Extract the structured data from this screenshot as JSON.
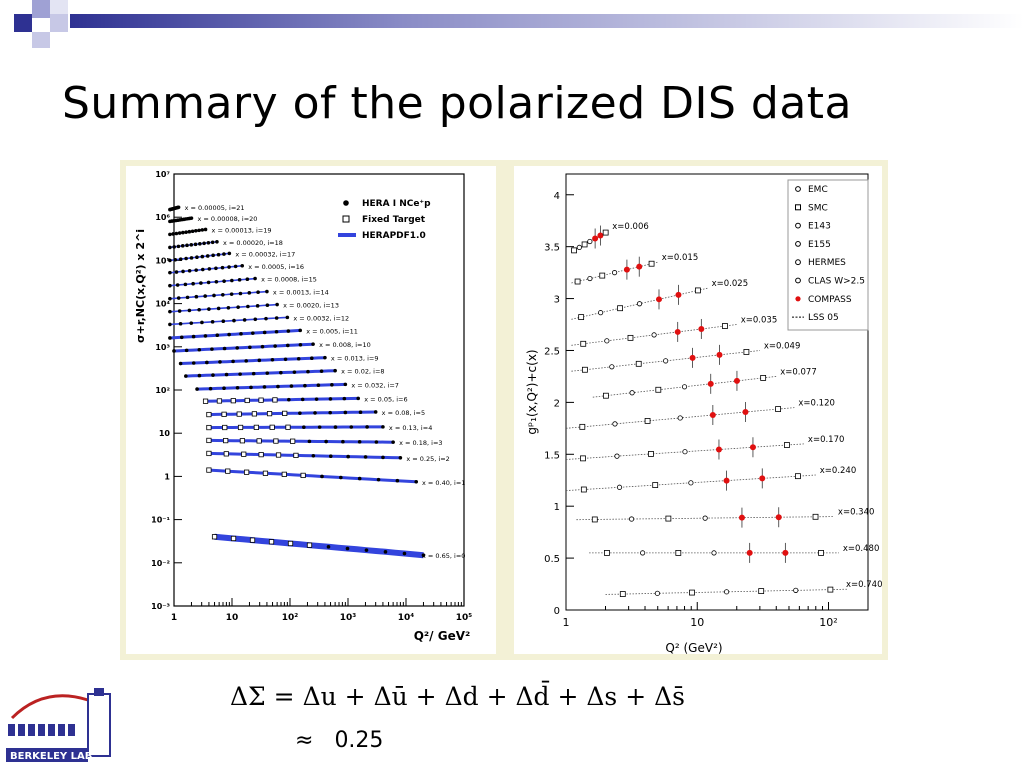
{
  "slide": {
    "title": "Summary of the polarized DIS data",
    "formula": "ΔΣ = Δu + Δū + Δd + Δd̄ + Δs + Δs̄",
    "approx_symbol": "≈",
    "approx_value": "0.25",
    "logo_text": "BERKELEY LAB",
    "accent": "#2e3192"
  },
  "chart_data": [
    {
      "type": "scatter",
      "ylabel": "σ+r,NC(x,Q²) x 2^i",
      "xlabel": "Q²/ GeV²",
      "xscale": "log",
      "yscale": "log",
      "xlim": [
        1,
        100000
      ],
      "ylim": [
        0.001,
        10000000
      ],
      "x_ticks": [
        "1",
        "10",
        "10²",
        "10³",
        "10⁴",
        "10⁵"
      ],
      "y_ticks": [
        "10⁻³",
        "10⁻²",
        "10⁻¹",
        "1",
        "10",
        "10²",
        "10³",
        "10⁴",
        "10⁵",
        "10⁶",
        "10⁷"
      ],
      "legend_position": "top-right",
      "legend": [
        {
          "label": "HERA I NCe⁺p",
          "marker": "filled-circle"
        },
        {
          "label": "Fixed Target",
          "marker": "open-square"
        },
        {
          "label": "HERAPDF1.0",
          "marker": "blue-band"
        }
      ],
      "series": [
        {
          "label": "x = 0.00005, i=21",
          "q2": [
            0.85,
            1.2
          ],
          "sigma_scaled": [
            1500000,
            1700000
          ]
        },
        {
          "label": "x = 0.00008, i=20",
          "q2": [
            0.85,
            2.0
          ],
          "sigma_scaled": [
            800000,
            950000
          ]
        },
        {
          "label": "x = 0.00013, i=19",
          "q2": [
            0.85,
            3.5
          ],
          "sigma_scaled": [
            400000,
            520000
          ]
        },
        {
          "label": "x = 0.00020, i=18",
          "q2": [
            0.85,
            5.5
          ],
          "sigma_scaled": [
            200000,
            270000
          ]
        },
        {
          "label": "x = 0.00032, i=17",
          "q2": [
            0.85,
            9
          ],
          "sigma_scaled": [
            100000,
            145000
          ]
        },
        {
          "label": "x = 0.0005, i=16",
          "q2": [
            0.85,
            15
          ],
          "sigma_scaled": [
            52000,
            75000
          ]
        },
        {
          "label": "x = 0.0008, i=15",
          "q2": [
            0.85,
            25
          ],
          "sigma_scaled": [
            26000,
            38000
          ]
        },
        {
          "label": "x = 0.0013, i=14",
          "q2": [
            0.85,
            40
          ],
          "sigma_scaled": [
            13000,
            19000
          ]
        },
        {
          "label": "x = 0.0020, i=13",
          "q2": [
            0.85,
            60
          ],
          "sigma_scaled": [
            6500,
            9500
          ]
        },
        {
          "label": "x = 0.0032, i=12",
          "q2": [
            0.85,
            90
          ],
          "sigma_scaled": [
            3300,
            4800
          ]
        },
        {
          "label": "x = 0.005, i=11",
          "q2": [
            0.85,
            150
          ],
          "sigma_scaled": [
            1600,
            2400
          ]
        },
        {
          "label": "x = 0.008, i=10",
          "q2": [
            1.0,
            250
          ],
          "sigma_scaled": [
            800,
            1150
          ]
        },
        {
          "label": "x = 0.013, i=9",
          "q2": [
            1.3,
            400
          ],
          "sigma_scaled": [
            410,
            560
          ]
        },
        {
          "label": "x = 0.02, i=8",
          "q2": [
            1.6,
            600
          ],
          "sigma_scaled": [
            210,
            280
          ]
        },
        {
          "label": "x = 0.032, i=7",
          "q2": [
            2.5,
            900
          ],
          "sigma_scaled": [
            105,
            135
          ]
        },
        {
          "label": "x = 0.05, i=6",
          "q2": [
            3.5,
            1500
          ],
          "sigma_scaled": [
            55,
            64
          ]
        },
        {
          "label": "x = 0.08, i=5",
          "q2": [
            4,
            3000
          ],
          "sigma_scaled": [
            27,
            31
          ]
        },
        {
          "label": "x = 0.13, i=4",
          "q2": [
            4,
            4000
          ],
          "sigma_scaled": [
            13.5,
            14
          ]
        },
        {
          "label": "x = 0.18, i=3",
          "q2": [
            4,
            6000
          ],
          "sigma_scaled": [
            6.8,
            6.2
          ]
        },
        {
          "label": "x = 0.25, i=2",
          "q2": [
            4,
            8000
          ],
          "sigma_scaled": [
            3.4,
            2.7
          ]
        },
        {
          "label": "x = 0.40, i=1",
          "q2": [
            4,
            15000
          ],
          "sigma_scaled": [
            1.4,
            0.75
          ]
        },
        {
          "label": "x = 0.65, i=0",
          "q2": [
            5,
            20000
          ],
          "sigma_scaled": [
            0.04,
            0.015
          ]
        }
      ]
    },
    {
      "type": "scatter",
      "ylabel": "gᵖ₁(x,Q²)+c(x)",
      "xlabel": "Q² (GeV²)",
      "xscale": "log",
      "xlim": [
        1,
        200
      ],
      "ylim": [
        0,
        4.2
      ],
      "x_ticks": [
        "1",
        "10",
        "10²"
      ],
      "y_ticks": [
        "0",
        "0.5",
        "1",
        "1.5",
        "2",
        "2.5",
        "3",
        "3.5",
        "4"
      ],
      "legend_position": "top-right",
      "legend": [
        {
          "label": "EMC",
          "marker": "star"
        },
        {
          "label": "SMC",
          "marker": "open-square"
        },
        {
          "label": "E143",
          "marker": "open-triangle"
        },
        {
          "label": "E155",
          "marker": "open-diamond"
        },
        {
          "label": "HERMES",
          "marker": "crossed-circle"
        },
        {
          "label": "CLAS W>2.5",
          "marker": "open-circle"
        },
        {
          "label": "COMPASS",
          "marker": "red-filled-circle"
        },
        {
          "label": "LSS 05",
          "marker": "dotted-line"
        }
      ],
      "series": [
        {
          "label": "x=0.006",
          "q2": [
            1.1,
            2.1
          ],
          "value": [
            3.45,
            3.65
          ]
        },
        {
          "label": "x=0.015",
          "q2": [
            1.1,
            5
          ],
          "value": [
            3.15,
            3.35
          ]
        },
        {
          "label": "x=0.025",
          "q2": [
            1.1,
            12
          ],
          "value": [
            2.8,
            3.1
          ]
        },
        {
          "label": "x=0.035",
          "q2": [
            1.1,
            20
          ],
          "value": [
            2.55,
            2.75
          ]
        },
        {
          "label": "x=0.049",
          "q2": [
            1.1,
            30
          ],
          "value": [
            2.3,
            2.5
          ]
        },
        {
          "label": "x=0.077",
          "q2": [
            1.6,
            40
          ],
          "value": [
            2.05,
            2.25
          ]
        },
        {
          "label": "x=0.120",
          "q2": [
            1.0,
            55
          ],
          "value": [
            1.75,
            1.95
          ]
        },
        {
          "label": "x=0.170",
          "q2": [
            1.0,
            65
          ],
          "value": [
            1.45,
            1.6
          ]
        },
        {
          "label": "x=0.240",
          "q2": [
            1.0,
            80
          ],
          "value": [
            1.15,
            1.3
          ]
        },
        {
          "label": "x=0.340",
          "q2": [
            1.2,
            110
          ],
          "value": [
            0.87,
            0.9
          ]
        },
        {
          "label": "x=0.480",
          "q2": [
            1.5,
            120
          ],
          "value": [
            0.55,
            0.55
          ]
        },
        {
          "label": "x=0.740",
          "q2": [
            2.0,
            140
          ],
          "value": [
            0.15,
            0.2
          ]
        }
      ]
    }
  ]
}
